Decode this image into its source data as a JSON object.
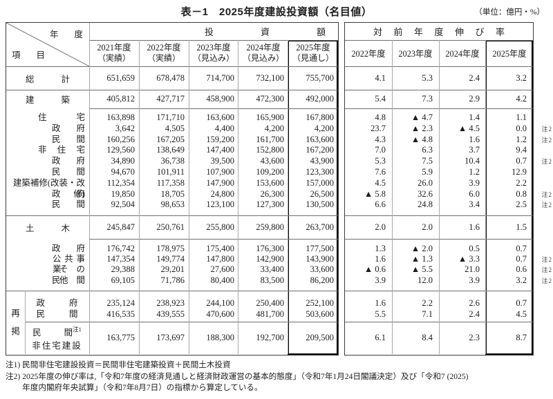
{
  "title": "表－1　2025年度建設投資額（名目値）",
  "unit_label": "（単位：億円・%）",
  "header": {
    "year_label": "年度",
    "item_label": "項目",
    "amount_group": "投資額",
    "growth_group": "対前年度伸び率",
    "amount_years": [
      {
        "year": "2021年度",
        "kind": "（実績）"
      },
      {
        "year": "2022年度",
        "kind": "（実績）"
      },
      {
        "year": "2023年度",
        "kind": "（見込み）"
      },
      {
        "year": "2024年度",
        "kind": "（見込み）"
      },
      {
        "year": "2025年度",
        "kind": "（見通し）"
      }
    ],
    "growth_years": [
      "2022年度",
      "2023年度",
      "2024年度",
      "2025年度"
    ]
  },
  "saikei_label": "再掲",
  "body": [
    {
      "kind": "row",
      "label": "総計",
      "lcls": "jw64",
      "amounts": [
        "651,659",
        "678,478",
        "714,700",
        "732,100",
        "755,700"
      ],
      "growth": [
        "4.1",
        "5.3",
        "2.4",
        "3.2"
      ]
    },
    {
      "kind": "row",
      "label": "建築",
      "lcls": "jw64",
      "amounts": [
        "405,812",
        "427,717",
        "458,900",
        "472,300",
        "492,000"
      ],
      "growth": [
        "5.4",
        "7.3",
        "2.9",
        "4.2"
      ]
    },
    {
      "kind": "block",
      "items": [
        {
          "label": "住宅",
          "lcls": "jw68",
          "amounts": [
            "163,898",
            "171,710",
            "163,600",
            "165,900",
            "167,800"
          ],
          "growth": [
            "4.8",
            "▲ 4.7",
            "1.4",
            "1.1"
          ],
          "note": ""
        },
        {
          "label": "政府",
          "lcls": "jw48",
          "amounts": [
            "3,642",
            "4,505",
            "4,400",
            "4,200",
            "4,200"
          ],
          "growth": [
            "23.7",
            "▲ 2.3",
            "▲ 4.5",
            "0.0"
          ],
          "note": "注2"
        },
        {
          "label": "民間",
          "lcls": "jw48",
          "amounts": [
            "160,256",
            "167,205",
            "159,200",
            "161,700",
            "163,600"
          ],
          "growth": [
            "4.3",
            "▲ 4.8",
            "1.6",
            "1.2"
          ],
          "note": "注2"
        },
        {
          "label": "非住宅",
          "lcls": "jw68",
          "amounts": [
            "129,560",
            "138,649",
            "147,400",
            "152,800",
            "167,200"
          ],
          "growth": [
            "7.0",
            "6.3",
            "3.7",
            "9.4"
          ],
          "note": ""
        },
        {
          "label": "政府",
          "lcls": "jw48",
          "amounts": [
            "34,890",
            "36,738",
            "39,500",
            "43,600",
            "43,900"
          ],
          "growth": [
            "5.3",
            "7.5",
            "10.4",
            "0.7"
          ],
          "note": "注2"
        },
        {
          "label": "民間",
          "lcls": "jw48",
          "amounts": [
            "94,670",
            "101,911",
            "107,900",
            "109,200",
            "123,300"
          ],
          "growth": [
            "7.6",
            "5.9",
            "1.2",
            "12.9"
          ],
          "note": ""
        },
        {
          "label": "建築補修(改装・改修)",
          "lcls": "",
          "amounts": [
            "112,354",
            "117,358",
            "147,900",
            "153,600",
            "157,000"
          ],
          "growth": [
            "4.5",
            "26.0",
            "3.9",
            "2.2"
          ],
          "note": ""
        },
        {
          "label": "政府",
          "lcls": "jw48",
          "amounts": [
            "19,850",
            "18,705",
            "24,800",
            "26,300",
            "26,500"
          ],
          "growth": [
            "▲ 5.8",
            "32.6",
            "6.0",
            "0.8"
          ],
          "note": "注2"
        },
        {
          "label": "民間",
          "lcls": "jw48",
          "amounts": [
            "92,504",
            "98,653",
            "123,100",
            "127,300",
            "130,500"
          ],
          "growth": [
            "6.6",
            "24.8",
            "3.4",
            "2.5"
          ],
          "note": "注2"
        }
      ]
    },
    {
      "kind": "row",
      "label": "土木",
      "lcls": "jw64",
      "amounts": [
        "245,847",
        "250,761",
        "255,800",
        "259,800",
        "263,700"
      ],
      "growth": [
        "2.0",
        "2.0",
        "1.6",
        "1.5"
      ]
    },
    {
      "kind": "block",
      "items": [
        {
          "label": "政府",
          "lcls": "jw48",
          "amounts": [
            "176,742",
            "178,975",
            "175,400",
            "176,300",
            "177,500"
          ],
          "growth": [
            "1.3",
            "▲ 2.0",
            "0.5",
            "0.7"
          ],
          "note": ""
        },
        {
          "label": "公共事業",
          "lcls": "jw47",
          "amounts": [
            "147,354",
            "149,774",
            "147,800",
            "142,900",
            "143,900"
          ],
          "growth": [
            "1.6",
            "▲ 1.3",
            "▲ 3.3",
            "0.7"
          ],
          "note": "注2"
        },
        {
          "label": "その他",
          "lcls": "jw37",
          "amounts": [
            "29,388",
            "29,201",
            "27,600",
            "33,400",
            "33,600"
          ],
          "growth": [
            "▲ 0.6",
            "▲ 5.5",
            "21.0",
            "0.6"
          ],
          "note": "注2"
        },
        {
          "label": "民間",
          "lcls": "jw48",
          "amounts": [
            "69,105",
            "71,786",
            "80,400",
            "83,500",
            "86,200"
          ],
          "growth": [
            "3.9",
            "12.0",
            "3.9",
            "3.2"
          ],
          "note": "注2"
        }
      ]
    },
    {
      "kind": "block",
      "saikei": true,
      "items": [
        {
          "label": "政府",
          "lcls": "jw60",
          "amounts": [
            "235,124",
            "238,923",
            "244,100",
            "250,400",
            "252,100"
          ],
          "growth": [
            "1.6",
            "2.2",
            "2.6",
            "0.7"
          ],
          "note": ""
        },
        {
          "label": "民間",
          "lcls": "jw60",
          "amounts": [
            "416,535",
            "439,555",
            "470,600",
            "481,700",
            "503,600"
          ],
          "growth": [
            "5.5",
            "7.1",
            "2.4",
            "4.5"
          ],
          "note": ""
        }
      ]
    },
    {
      "kind": "row2",
      "label1": "民間",
      "sup": "注1",
      "label2": "非住宅建設",
      "amounts": [
        "163,775",
        "173,697",
        "188,300",
        "192,700",
        "209,500"
      ],
      "growth": [
        "6.1",
        "8.4",
        "2.3",
        "8.7"
      ]
    }
  ],
  "footnotes": {
    "fn1": "注1) 民間非住宅建設投資＝民間非住宅建築投資＋民間土木投資",
    "fn2_label": "注2) ",
    "fn2_line1": "2025年度の伸び率は,「令和7年度の経済見通しと経済財政運営の基本的態度」（令和7年1月24日閣議決定）及び「令和7 (2025)",
    "fn2_line2": "年度内閣府年央試算」（令和7年8月7日）の指標から算定している。"
  }
}
